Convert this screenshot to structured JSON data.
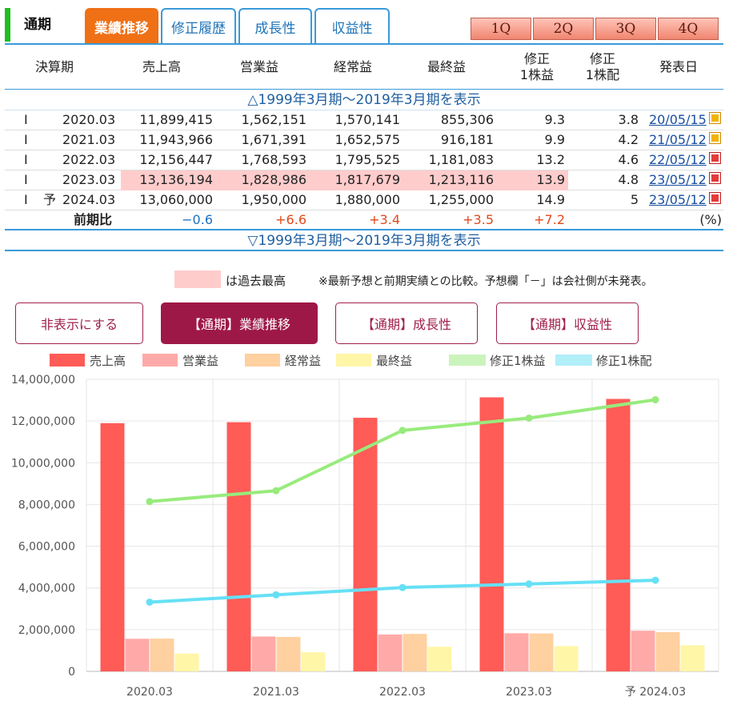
{
  "tabs": {
    "period_label": "通期",
    "items": [
      {
        "label": "業績推移",
        "active": true
      },
      {
        "label": "修正履歴",
        "active": false
      },
      {
        "label": "成長性",
        "active": false
      },
      {
        "label": "収益性",
        "active": false
      }
    ],
    "quarters": [
      "1Q",
      "2Q",
      "3Q",
      "4Q"
    ]
  },
  "table": {
    "headers": {
      "period": "決算期",
      "sales": "売上高",
      "op": "営業益",
      "ord": "経常益",
      "net": "最終益",
      "eps_1": "修正",
      "eps_2": "1株益",
      "div_1": "修正",
      "div_2": "1株配",
      "date": "発表日"
    },
    "toggle_top": "△1999年3月期～2019年3月期を表示",
    "toggle_bottom": "▽1999年3月期～2019年3月期を表示",
    "rows": [
      {
        "type": "I",
        "forecast": "",
        "period": "2020.03",
        "sales": "11,899,415",
        "op": "1,562,151",
        "ord": "1,570,141",
        "net": "855,306",
        "eps": "9.3",
        "div": "3.8",
        "date": "20/05/15",
        "highlight": false
      },
      {
        "type": "I",
        "forecast": "",
        "period": "2021.03",
        "sales": "11,943,966",
        "op": "1,671,391",
        "ord": "1,652,575",
        "net": "916,181",
        "eps": "9.9",
        "div": "4.2",
        "date": "21/05/12",
        "highlight": false
      },
      {
        "type": "I",
        "forecast": "",
        "period": "2022.03",
        "sales": "12,156,447",
        "op": "1,768,593",
        "ord": "1,795,525",
        "net": "1,181,083",
        "eps": "13.2",
        "div": "4.6",
        "date": "22/05/12",
        "highlight": false
      },
      {
        "type": "I",
        "forecast": "",
        "period": "2023.03",
        "sales": "13,136,194",
        "op": "1,828,986",
        "ord": "1,817,679",
        "net": "1,213,116",
        "eps": "13.9",
        "div": "4.8",
        "date": "23/05/12",
        "highlight": true
      },
      {
        "type": "I",
        "forecast": "予",
        "period": "2024.03",
        "sales": "13,060,000",
        "op": "1,950,000",
        "ord": "1,880,000",
        "net": "1,255,000",
        "eps": "14.9",
        "div": "5",
        "date": "23/05/12",
        "highlight": false
      }
    ],
    "ratio": {
      "label": "前期比",
      "sales": "−0.6",
      "op": "+6.6",
      "ord": "+3.4",
      "net": "+3.5",
      "eps": "+7.2",
      "unit": "(%)"
    }
  },
  "note": {
    "swatch_text": "は過去最高",
    "text": "※最新予想と前期実績との比較。予想欄「－」は会社側が未発表。"
  },
  "buttons": [
    {
      "label": "非表示にする",
      "active": false
    },
    {
      "label": "【通期】業績推移",
      "active": true
    },
    {
      "label": "【通期】成長性",
      "active": false
    },
    {
      "label": "【通期】収益性",
      "active": false
    }
  ],
  "chart_data": {
    "type": "bar",
    "categories": [
      "2020.03",
      "2021.03",
      "2022.03",
      "2023.03",
      "予 2024.03"
    ],
    "ylim": [
      0,
      14000000
    ],
    "yticks": [
      "0",
      "2,000,000",
      "4,000,000",
      "6,000,000",
      "8,000,000",
      "10,000,000",
      "12,000,000",
      "14,000,000"
    ],
    "series": [
      {
        "name": "売上高",
        "kind": "bar",
        "color": "#ff5b57",
        "values": [
          11899415,
          11943966,
          12156447,
          13136194,
          13060000
        ]
      },
      {
        "name": "営業益",
        "kind": "bar",
        "color": "#ffaaa8",
        "values": [
          1562151,
          1671391,
          1768593,
          1828986,
          1950000
        ]
      },
      {
        "name": "経常益",
        "kind": "bar",
        "color": "#ffd0a0",
        "values": [
          1570141,
          1652575,
          1795525,
          1817679,
          1880000
        ]
      },
      {
        "name": "最終益",
        "kind": "bar",
        "color": "#fff6a8",
        "values": [
          855306,
          916181,
          1181083,
          1213116,
          1255000
        ]
      },
      {
        "name": "修正1株益",
        "kind": "line",
        "color": "#98eb7c",
        "values": [
          8140000,
          8660000,
          11550000,
          12140000,
          13020000
        ]
      },
      {
        "name": "修正1株配",
        "kind": "line",
        "color": "#66e0f5",
        "values": [
          3320000,
          3670000,
          4020000,
          4190000,
          4370000
        ]
      }
    ],
    "grid": true,
    "legend_position": "top"
  }
}
